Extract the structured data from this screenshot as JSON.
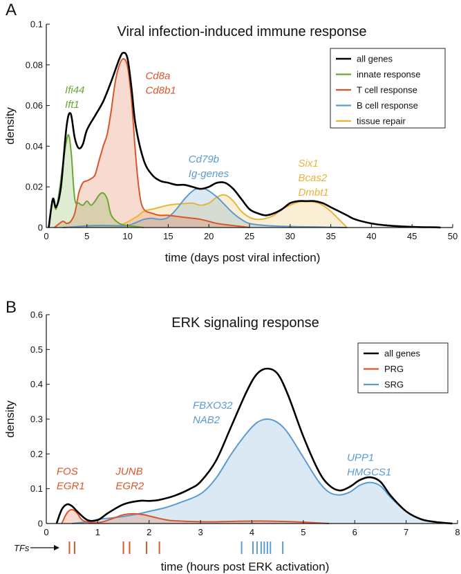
{
  "colors": {
    "all": "#000000",
    "innate": "#6aa832",
    "tcell": "#d9562b",
    "bcell": "#5b9bd0",
    "tissue": "#e8b43a",
    "prg": "#d9562b",
    "srg": "#5b9bd0"
  },
  "chart_data": [
    {
      "panel": "A",
      "type": "area",
      "title": "Viral infection-induced immune response",
      "xlabel": "time (days post viral infection)",
      "ylabel": "density",
      "xlim": [
        0,
        50
      ],
      "ylim": [
        0,
        0.1
      ],
      "xticks": [
        "0",
        "5",
        "10",
        "15",
        "20",
        "25",
        "30",
        "35",
        "40",
        "45",
        "50"
      ],
      "yticks": [
        "0",
        "0.02",
        "0.04",
        "0.06",
        "0.08",
        "0.1"
      ],
      "legend_position": "top-right",
      "series": [
        {
          "name": "all genes",
          "color_key": "all",
          "fill": false,
          "x": [
            0.3,
            0.8,
            1.2,
            1.8,
            2.5,
            3.0,
            3.5,
            4.0,
            4.5,
            5.0,
            6.0,
            7.0,
            8.0,
            9.0,
            9.5,
            10.0,
            10.5,
            11.0,
            12.0,
            13.0,
            14.0,
            15.0,
            16.0,
            17.0,
            18.0,
            19.0,
            20.0,
            21.0,
            22.0,
            23.0,
            24.0,
            25.0,
            26.0,
            27.0,
            28.0,
            29.0,
            30.0,
            31.0,
            32.0,
            33.0,
            34.0,
            35.0,
            36.0,
            37.0,
            38.0,
            40.0,
            42.0,
            44.0,
            46.0,
            48.0,
            48.5
          ],
          "y": [
            0.0,
            0.014,
            0.01,
            0.02,
            0.05,
            0.056,
            0.044,
            0.039,
            0.041,
            0.048,
            0.055,
            0.062,
            0.072,
            0.083,
            0.086,
            0.083,
            0.068,
            0.05,
            0.033,
            0.026,
            0.023,
            0.022,
            0.021,
            0.021,
            0.02,
            0.019,
            0.02,
            0.022,
            0.022,
            0.019,
            0.014,
            0.009,
            0.007,
            0.006,
            0.007,
            0.009,
            0.012,
            0.013,
            0.013,
            0.013,
            0.012,
            0.01,
            0.008,
            0.006,
            0.004,
            0.002,
            0.001,
            0.0005,
            0.0002,
            0.0001,
            0.0
          ]
        },
        {
          "name": "innate response",
          "color_key": "innate",
          "fill": true,
          "x": [
            0.3,
            0.8,
            1.2,
            1.6,
            2.0,
            2.5,
            2.8,
            3.1,
            3.5,
            4.0,
            4.5,
            5.0,
            5.5,
            6.0,
            6.5,
            7.0,
            7.5,
            8.0,
            9.0,
            10.0,
            11.0,
            12.0
          ],
          "y": [
            0.0,
            0.013,
            0.009,
            0.018,
            0.03,
            0.043,
            0.045,
            0.035,
            0.014,
            0.012,
            0.011,
            0.013,
            0.011,
            0.013,
            0.016,
            0.017,
            0.014,
            0.006,
            0.002,
            0.001,
            0.0005,
            0.0
          ]
        },
        {
          "name": "T cell response",
          "color_key": "tcell",
          "fill": true,
          "x": [
            1.0,
            2.0,
            2.5,
            3.0,
            3.5,
            4.0,
            4.5,
            5.0,
            5.5,
            6.0,
            6.5,
            7.0,
            7.5,
            8.0,
            8.5,
            9.0,
            9.5,
            10.0,
            10.5,
            11.0,
            11.5,
            12.0,
            13.0,
            14.0,
            15.0,
            17.0,
            19.0,
            21.0,
            23.0,
            25.0
          ],
          "y": [
            0.0,
            0.003,
            0.002,
            0.003,
            0.007,
            0.017,
            0.022,
            0.023,
            0.024,
            0.026,
            0.033,
            0.04,
            0.046,
            0.058,
            0.072,
            0.08,
            0.083,
            0.079,
            0.062,
            0.035,
            0.016,
            0.009,
            0.007,
            0.006,
            0.006,
            0.005,
            0.004,
            0.002,
            0.001,
            0.0
          ]
        },
        {
          "name": "B cell response",
          "color_key": "bcell",
          "fill": true,
          "x": [
            2.0,
            4.0,
            6.0,
            8.0,
            10.0,
            12.0,
            13.0,
            14.0,
            15.0,
            16.0,
            17.0,
            18.0,
            18.5,
            19.0,
            19.5,
            20.0,
            21.0,
            22.0,
            23.0,
            24.0,
            25.0,
            27.0,
            30.0,
            33.0,
            36.0,
            37.0
          ],
          "y": [
            0.0,
            0.0005,
            0.001,
            0.001,
            0.001,
            0.004,
            0.0045,
            0.004,
            0.005,
            0.009,
            0.014,
            0.018,
            0.019,
            0.019,
            0.019,
            0.018,
            0.015,
            0.011,
            0.007,
            0.004,
            0.002,
            0.001,
            0.0005,
            0.0003,
            0.0001,
            0.0
          ]
        },
        {
          "name": "tissue repair",
          "color_key": "tissue",
          "fill": true,
          "x": [
            3.0,
            5.0,
            7.0,
            9.0,
            11.0,
            12.0,
            13.0,
            14.0,
            15.0,
            16.0,
            17.0,
            18.0,
            19.0,
            20.0,
            21.0,
            22.0,
            23.0,
            24.0,
            25.0,
            26.0,
            27.0,
            28.0,
            29.0,
            30.0,
            31.0,
            32.0,
            33.0,
            34.0,
            35.0,
            36.0,
            37.0
          ],
          "y": [
            0.0,
            0.001,
            0.001,
            0.001,
            0.005,
            0.008,
            0.009,
            0.01,
            0.011,
            0.0115,
            0.0118,
            0.012,
            0.011,
            0.012,
            0.015,
            0.016,
            0.013,
            0.008,
            0.005,
            0.004,
            0.0045,
            0.006,
            0.009,
            0.011,
            0.0125,
            0.0128,
            0.0125,
            0.011,
            0.008,
            0.004,
            0.0
          ]
        }
      ],
      "legend": [
        {
          "label": "all genes",
          "color_key": "all"
        },
        {
          "label": "innate response",
          "color_key": "innate"
        },
        {
          "label": "T cell response",
          "color_key": "tcell"
        },
        {
          "label": "B cell response",
          "color_key": "bcell"
        },
        {
          "label": "tissue repair",
          "color_key": "tissue"
        }
      ],
      "annotations": [
        {
          "lines": [
            "Ifi44",
            "Ift1"
          ],
          "color_key": "innate",
          "x": 2.3,
          "y": 0.066
        },
        {
          "lines": [
            "Cd8a",
            "Cd8b1"
          ],
          "color_key": "tcell",
          "x": 12.2,
          "y": 0.073
        },
        {
          "lines": [
            "Cd79b",
            "Ig-genes"
          ],
          "color_key": "bcell",
          "x": 17.5,
          "y": 0.032
        },
        {
          "lines": [
            "Six1",
            "Bcas2",
            "Dmbt1"
          ],
          "color_key": "tissue",
          "x": 31.0,
          "y": 0.03
        }
      ]
    },
    {
      "panel": "B",
      "type": "area",
      "title": "ERK signaling response",
      "xlabel": "time (hours post ERK activation)",
      "ylabel": "density",
      "xlim": [
        0,
        8
      ],
      "ylim": [
        0,
        0.6
      ],
      "xticks": [
        "0",
        "1",
        "2",
        "3",
        "4",
        "5",
        "6",
        "7",
        "8"
      ],
      "yticks": [
        "0",
        "0.1",
        "0.2",
        "0.3",
        "0.4",
        "0.5",
        "0.6"
      ],
      "legend_position": "top-right",
      "series": [
        {
          "name": "all genes",
          "color_key": "all",
          "fill": false,
          "x": [
            0.2,
            0.3,
            0.4,
            0.5,
            0.6,
            0.8,
            1.0,
            1.2,
            1.5,
            1.8,
            2.0,
            2.2,
            2.5,
            2.8,
            3.0,
            3.3,
            3.6,
            3.9,
            4.1,
            4.3,
            4.5,
            4.7,
            5.0,
            5.3,
            5.5,
            5.7,
            5.9,
            6.1,
            6.3,
            6.5,
            6.7,
            7.0,
            7.3,
            7.6,
            7.9
          ],
          "y": [
            0.0,
            0.04,
            0.055,
            0.05,
            0.035,
            0.01,
            0.01,
            0.03,
            0.055,
            0.065,
            0.065,
            0.068,
            0.08,
            0.1,
            0.12,
            0.18,
            0.28,
            0.38,
            0.43,
            0.445,
            0.43,
            0.37,
            0.25,
            0.15,
            0.11,
            0.095,
            0.105,
            0.125,
            0.133,
            0.12,
            0.08,
            0.035,
            0.012,
            0.004,
            0.0
          ]
        },
        {
          "name": "PRG",
          "color_key": "prg",
          "fill": true,
          "x": [
            0.3,
            0.4,
            0.5,
            0.6,
            0.7,
            0.9,
            1.1,
            1.3,
            1.5,
            1.7,
            1.9,
            2.1,
            2.4,
            2.8,
            3.2,
            3.6,
            4.0,
            4.3,
            4.6,
            5.0,
            5.5
          ],
          "y": [
            0.0,
            0.03,
            0.04,
            0.03,
            0.01,
            0.002,
            0.005,
            0.015,
            0.025,
            0.028,
            0.025,
            0.018,
            0.009,
            0.006,
            0.005,
            0.006,
            0.007,
            0.007,
            0.006,
            0.004,
            0.0
          ]
        },
        {
          "name": "SRG",
          "color_key": "srg",
          "fill": true,
          "x": [
            0.5,
            0.8,
            1.0,
            1.2,
            1.5,
            1.8,
            2.0,
            2.3,
            2.6,
            3.0,
            3.3,
            3.6,
            3.9,
            4.1,
            4.3,
            4.5,
            4.7,
            5.0,
            5.3,
            5.5,
            5.7,
            5.9,
            6.1,
            6.3,
            6.5,
            6.7,
            7.0,
            7.3,
            7.6,
            7.9
          ],
          "y": [
            0.0,
            0.005,
            0.012,
            0.015,
            0.02,
            0.028,
            0.035,
            0.045,
            0.06,
            0.085,
            0.13,
            0.2,
            0.26,
            0.29,
            0.3,
            0.29,
            0.26,
            0.19,
            0.12,
            0.09,
            0.082,
            0.09,
            0.11,
            0.118,
            0.108,
            0.075,
            0.035,
            0.012,
            0.004,
            0.0
          ]
        }
      ],
      "legend": [
        {
          "label": "all genes",
          "color_key": "all"
        },
        {
          "label": "PRG",
          "color_key": "prg"
        },
        {
          "label": "SRG",
          "color_key": "srg"
        }
      ],
      "annotations": [
        {
          "lines": [
            "FOS",
            "EGR1"
          ],
          "color_key": "prg",
          "x": 0.2,
          "y": 0.14
        },
        {
          "lines": [
            "JUNB",
            "EGR2"
          ],
          "color_key": "prg",
          "x": 1.35,
          "y": 0.14
        },
        {
          "lines": [
            "FBXO32",
            "NAB2"
          ],
          "color_key": "srg",
          "x": 2.85,
          "y": 0.33
        },
        {
          "lines": [
            "UPP1",
            "HMGCS1"
          ],
          "color_key": "srg",
          "x": 5.85,
          "y": 0.18
        }
      ],
      "tf_label": "TFs",
      "tf_marks": [
        {
          "x": 0.45,
          "color_key": "prg"
        },
        {
          "x": 0.55,
          "color_key": "prg"
        },
        {
          "x": 1.5,
          "color_key": "prg"
        },
        {
          "x": 1.62,
          "color_key": "prg"
        },
        {
          "x": 1.95,
          "color_key": "prg"
        },
        {
          "x": 2.2,
          "color_key": "prg"
        },
        {
          "x": 3.8,
          "color_key": "srg"
        },
        {
          "x": 4.02,
          "color_key": "srg"
        },
        {
          "x": 4.1,
          "color_key": "srg"
        },
        {
          "x": 4.18,
          "color_key": "srg"
        },
        {
          "x": 4.24,
          "color_key": "srg"
        },
        {
          "x": 4.3,
          "color_key": "srg"
        },
        {
          "x": 4.36,
          "color_key": "srg"
        },
        {
          "x": 4.6,
          "color_key": "srg"
        }
      ]
    }
  ]
}
